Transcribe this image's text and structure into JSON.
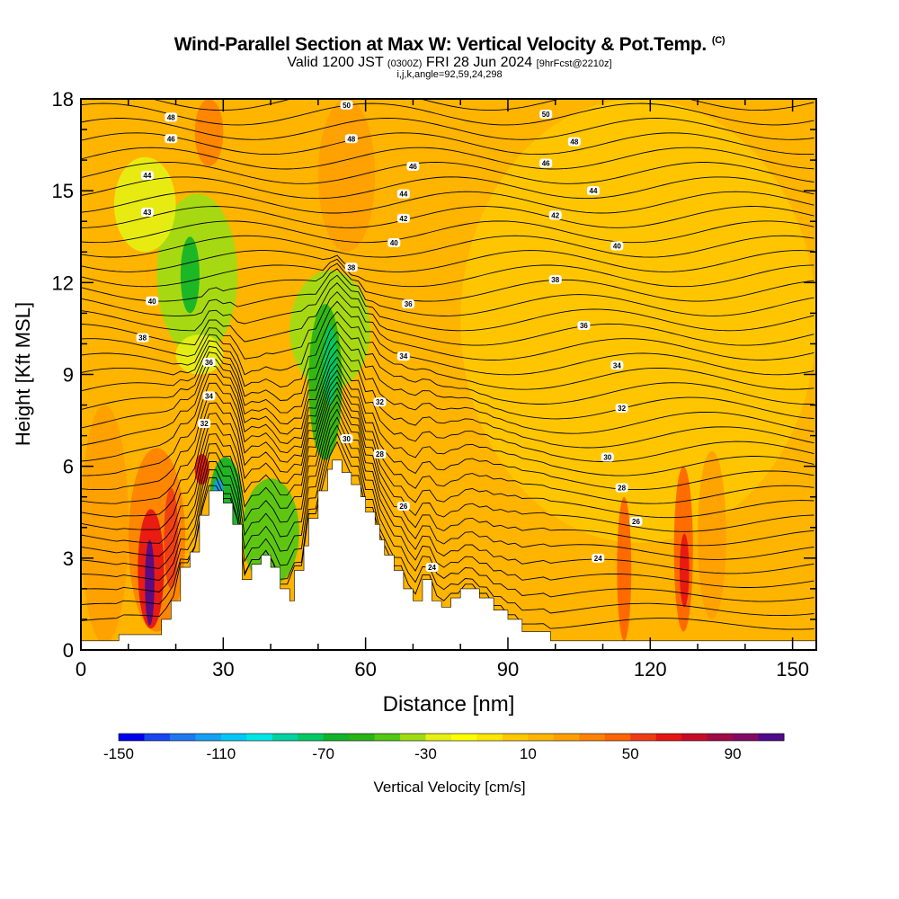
{
  "header": {
    "title": "Wind-Parallel Section at Max W: Vertical Velocity & Pot.Temp.",
    "title_mark": "(C)",
    "subtitle_a": "Valid 1200 JST",
    "subtitle_b": "(0300Z)",
    "subtitle_c": "FRI 28 Jun 2024",
    "subtitle_d": "[9hrFcst@2210z]",
    "subsubtitle": "i,j,k,angle=92,59,24,298"
  },
  "chart_data": {
    "type": "heatmap",
    "xlabel": "Distance [nm]",
    "ylabel": "Height [Kft MSL]",
    "xlim": [
      0,
      155
    ],
    "ylim": [
      0,
      18
    ],
    "xticks": [
      0,
      30,
      60,
      90,
      120,
      150
    ],
    "yticks": [
      0,
      3,
      6,
      9,
      12,
      15,
      18
    ],
    "colorbar": {
      "label": "Vertical Velocity [cm/s]",
      "range": [
        -150,
        110
      ],
      "step": 10,
      "tick_values": [
        -150,
        -110,
        -70,
        -30,
        10,
        50,
        90
      ],
      "colors": [
        "#0000ee",
        "#1846f0",
        "#1f78f0",
        "#14a0f5",
        "#00c8f5",
        "#00e6e6",
        "#00d2a0",
        "#00c864",
        "#10b428",
        "#28b414",
        "#50c814",
        "#a0dc14",
        "#e6f014",
        "#ffff00",
        "#ffe600",
        "#ffc800",
        "#ffb400",
        "#ffa000",
        "#ff8200",
        "#ff6400",
        "#f03c14",
        "#e61414",
        "#c80a28",
        "#a00a46",
        "#820a64",
        "#500a8c"
      ]
    },
    "terrain_kft": [
      [
        0,
        0.3
      ],
      [
        8,
        0.3
      ],
      [
        8,
        0.5
      ],
      [
        17,
        0.5
      ],
      [
        17,
        1.0
      ],
      [
        19,
        1.0
      ],
      [
        19,
        1.6
      ],
      [
        21,
        1.6
      ],
      [
        21,
        2.7
      ],
      [
        23,
        2.7
      ],
      [
        23,
        3.2
      ],
      [
        25,
        3.2
      ],
      [
        25,
        4.4
      ],
      [
        27,
        4.4
      ],
      [
        27,
        5.2
      ],
      [
        30,
        5.2
      ],
      [
        30,
        4.8
      ],
      [
        32,
        4.8
      ],
      [
        32,
        4.1
      ],
      [
        34,
        4.1
      ],
      [
        34,
        2.3
      ],
      [
        36,
        2.3
      ],
      [
        36,
        2.8
      ],
      [
        38,
        2.8
      ],
      [
        38,
        3.1
      ],
      [
        40,
        3.1
      ],
      [
        40,
        2.7
      ],
      [
        42,
        2.7
      ],
      [
        42,
        2.0
      ],
      [
        44,
        2.0
      ],
      [
        44,
        1.6
      ],
      [
        45,
        1.6
      ],
      [
        45,
        2.6
      ],
      [
        47,
        2.6
      ],
      [
        47,
        3.4
      ],
      [
        48,
        3.4
      ],
      [
        48,
        4.3
      ],
      [
        50,
        4.3
      ],
      [
        50,
        5.2
      ],
      [
        52,
        5.2
      ],
      [
        52,
        5.9
      ],
      [
        53,
        5.9
      ],
      [
        53,
        6.2
      ],
      [
        55,
        6.2
      ],
      [
        55,
        5.8
      ],
      [
        57,
        5.8
      ],
      [
        57,
        5.4
      ],
      [
        59,
        5.4
      ],
      [
        59,
        5.0
      ],
      [
        60,
        5.0
      ],
      [
        60,
        4.5
      ],
      [
        62,
        4.5
      ],
      [
        62,
        4.1
      ],
      [
        63,
        4.1
      ],
      [
        63,
        3.6
      ],
      [
        64,
        3.6
      ],
      [
        64,
        3.1
      ],
      [
        66,
        3.1
      ],
      [
        66,
        2.6
      ],
      [
        68,
        2.6
      ],
      [
        68,
        2.0
      ],
      [
        70,
        2.0
      ],
      [
        70,
        1.6
      ],
      [
        72,
        1.6
      ],
      [
        72,
        2.3
      ],
      [
        74,
        2.3
      ],
      [
        74,
        1.6
      ],
      [
        76,
        1.6
      ],
      [
        76,
        1.4
      ],
      [
        78,
        1.4
      ],
      [
        78,
        1.7
      ],
      [
        80,
        1.7
      ],
      [
        80,
        2.0
      ],
      [
        84,
        2.0
      ],
      [
        84,
        1.7
      ],
      [
        87,
        1.7
      ],
      [
        87,
        1.3
      ],
      [
        90,
        1.3
      ],
      [
        90,
        1.0
      ],
      [
        93,
        1.0
      ],
      [
        93,
        0.6
      ],
      [
        99,
        0.6
      ],
      [
        99,
        0.3
      ],
      [
        155,
        0.3
      ]
    ],
    "velocity_cells": [
      {
        "x": [
          13.5,
          15.5
        ],
        "y": [
          0.8,
          3.6
        ],
        "w": 120
      },
      {
        "x": [
          12,
          17.5
        ],
        "y": [
          0.7,
          4.6
        ],
        "w": 60
      },
      {
        "x": [
          17.5,
          20.5
        ],
        "y": [
          2.0,
          5.3
        ],
        "w": 55
      },
      {
        "x": [
          10,
          22
        ],
        "y": [
          0.6,
          6.6
        ],
        "w": 30
      },
      {
        "x": [
          24,
          27
        ],
        "y": [
          5.4,
          6.4
        ],
        "w": 65
      },
      {
        "x": [
          28,
          30
        ],
        "y": [
          4.9,
          5.6
        ],
        "w": -115
      },
      {
        "x": [
          27,
          34
        ],
        "y": [
          3.2,
          6.3
        ],
        "w": -70
      },
      {
        "x": [
          34,
          46
        ],
        "y": [
          2.1,
          5.6
        ],
        "w": -50
      },
      {
        "x": [
          48,
          55
        ],
        "y": [
          6.2,
          11.3
        ],
        "w": -60
      },
      {
        "x": [
          51,
          54
        ],
        "y": [
          8.0,
          10.6
        ],
        "w": -80
      },
      {
        "x": [
          44,
          61
        ],
        "y": [
          8.5,
          12.4
        ],
        "w": -35
      },
      {
        "x": [
          21,
          25
        ],
        "y": [
          11.0,
          13.5
        ],
        "w": -65
      },
      {
        "x": [
          16,
          33
        ],
        "y": [
          9.6,
          14.9
        ],
        "w": -35
      },
      {
        "x": [
          7,
          20
        ],
        "y": [
          13.0,
          16.1
        ],
        "w": -25
      },
      {
        "x": [
          20,
          30
        ],
        "y": [
          9.0,
          10.3
        ],
        "w": -25
      },
      {
        "x": [
          24,
          30
        ],
        "y": [
          15.8,
          18
        ],
        "w": 30
      },
      {
        "x": [
          50,
          62
        ],
        "y": [
          13.0,
          18
        ],
        "w": 25
      },
      {
        "x": [
          113,
          116
        ],
        "y": [
          0.3,
          5.0
        ],
        "w": 40
      },
      {
        "x": [
          126.2,
          128.2
        ],
        "y": [
          1.4,
          3.8
        ],
        "w": 65
      },
      {
        "x": [
          125,
          129
        ],
        "y": [
          0.6,
          6.0
        ],
        "w": 40
      },
      {
        "x": [
          130,
          136
        ],
        "y": [
          1.0,
          6.5
        ],
        "w": 22
      },
      {
        "x": [
          0,
          10
        ],
        "y": [
          0.2,
          8.0
        ],
        "w": 25
      },
      {
        "x": [
          80,
          155
        ],
        "y": [
          3.5,
          18
        ],
        "w": 5
      }
    ],
    "theta_labels": [
      {
        "x": 19,
        "y": 17.4,
        "label": "48"
      },
      {
        "x": 56,
        "y": 17.8,
        "label": "50"
      },
      {
        "x": 98,
        "y": 17.5,
        "label": "50"
      },
      {
        "x": 19,
        "y": 16.7,
        "label": "46"
      },
      {
        "x": 57,
        "y": 16.7,
        "label": "48"
      },
      {
        "x": 104,
        "y": 16.6,
        "label": "48"
      },
      {
        "x": 14,
        "y": 15.5,
        "label": "44"
      },
      {
        "x": 70,
        "y": 15.8,
        "label": "46"
      },
      {
        "x": 98,
        "y": 15.9,
        "label": "46"
      },
      {
        "x": 14,
        "y": 14.3,
        "label": "43"
      },
      {
        "x": 68,
        "y": 14.9,
        "label": "44"
      },
      {
        "x": 108,
        "y": 15.0,
        "label": "44"
      },
      {
        "x": 68,
        "y": 14.1,
        "label": "42"
      },
      {
        "x": 100,
        "y": 14.2,
        "label": "42"
      },
      {
        "x": 66,
        "y": 13.3,
        "label": "40"
      },
      {
        "x": 113,
        "y": 13.2,
        "label": "40"
      },
      {
        "x": 57,
        "y": 12.5,
        "label": "38"
      },
      {
        "x": 100,
        "y": 12.1,
        "label": "38"
      },
      {
        "x": 15,
        "y": 11.4,
        "label": "40"
      },
      {
        "x": 69,
        "y": 11.3,
        "label": "36"
      },
      {
        "x": 106,
        "y": 10.6,
        "label": "36"
      },
      {
        "x": 13,
        "y": 10.2,
        "label": "38"
      },
      {
        "x": 27,
        "y": 9.4,
        "label": "36"
      },
      {
        "x": 68,
        "y": 9.6,
        "label": "34"
      },
      {
        "x": 113,
        "y": 9.3,
        "label": "34"
      },
      {
        "x": 27,
        "y": 8.3,
        "label": "34"
      },
      {
        "x": 63,
        "y": 8.1,
        "label": "32"
      },
      {
        "x": 114,
        "y": 7.9,
        "label": "32"
      },
      {
        "x": 26,
        "y": 7.4,
        "label": "32"
      },
      {
        "x": 56,
        "y": 6.9,
        "label": "30"
      },
      {
        "x": 111,
        "y": 6.3,
        "label": "30"
      },
      {
        "x": 63,
        "y": 6.4,
        "label": "28"
      },
      {
        "x": 114,
        "y": 5.3,
        "label": "28"
      },
      {
        "x": 68,
        "y": 4.7,
        "label": "26"
      },
      {
        "x": 117,
        "y": 4.2,
        "label": "26"
      },
      {
        "x": 74,
        "y": 2.7,
        "label": "24"
      },
      {
        "x": 109,
        "y": 3.0,
        "label": "24"
      }
    ]
  }
}
